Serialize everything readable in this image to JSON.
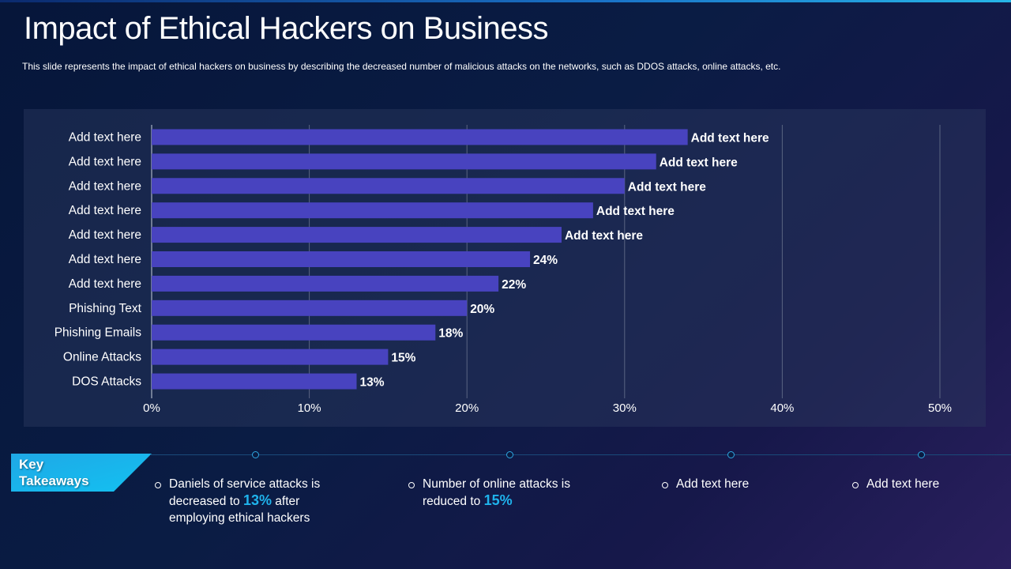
{
  "title": "Impact of Ethical Hackers on Business",
  "subtitle": "This slide represents the impact of ethical hackers on business by describing the decreased number of malicious attacks on the networks, such as DDOS attacks, online attacks, etc.",
  "colors": {
    "bar": "#4843bf",
    "accent": "#1fb3ec",
    "grid": "#5a6582"
  },
  "chart_data": {
    "type": "bar",
    "orientation": "horizontal",
    "categories": [
      "Add text here",
      "Add text here",
      "Add text here",
      "Add text here",
      "Add text here",
      "Add text here",
      "Add text here",
      "Phishing Text",
      "Phishing Emails",
      "Online Attacks",
      "DOS Attacks"
    ],
    "values": [
      34,
      32,
      30,
      28,
      26,
      24,
      22,
      20,
      18,
      15,
      13
    ],
    "data_labels": [
      "Add text here",
      "Add text here",
      "Add text here",
      "Add text here",
      "Add text here",
      "24%",
      "22%",
      "20%",
      "18%",
      "15%",
      "13%"
    ],
    "xlim": [
      0,
      50
    ],
    "xticks": [
      0,
      10,
      20,
      30,
      40,
      50
    ],
    "xtick_labels": [
      "0%",
      "10%",
      "20%",
      "30%",
      "40%",
      "50%"
    ],
    "grid": true,
    "title": "",
    "xlabel": "",
    "ylabel": ""
  },
  "takeaways": {
    "label_line1": "Key",
    "label_line2": "Takeaways",
    "item1": {
      "l1": "Daniels of service attacks is",
      "l2a": "decreased to ",
      "l2hl": "13%",
      "l2b": " after",
      "l3": "employing ethical hackers"
    },
    "item2": {
      "l1": "Number of online attacks is",
      "l2a": "reduced to ",
      "l2hl": "15%"
    },
    "item3": {
      "l1": "Add text here"
    },
    "item4": {
      "l1": "Add text here"
    }
  }
}
